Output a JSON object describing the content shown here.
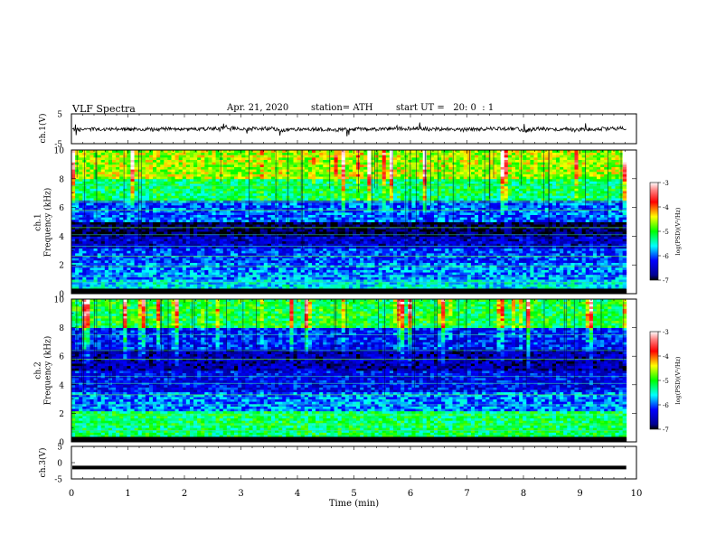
{
  "header": {
    "title": "VLF Spectra",
    "date": "Apr. 21, 2020",
    "station": "station= ATH",
    "start": "start UT =   20: 0  : 1"
  },
  "chart_data": [
    {
      "type": "line",
      "id": "ch1_waveform",
      "ylabel": "ch.1(V)",
      "ylim": [
        -5,
        5
      ],
      "yticks": [
        "5",
        "-5"
      ],
      "xlim": [
        0,
        10
      ],
      "x_data_end": 9.82,
      "y_mean_approx": 0,
      "color": "#000000"
    },
    {
      "type": "heatmap",
      "id": "ch1_spectrogram",
      "ylabel": "ch.1\nFrequency (kHz)",
      "ylim": [
        0,
        10
      ],
      "yticks": [
        "0",
        "2",
        "4",
        "6",
        "8",
        "10"
      ],
      "xlim": [
        0,
        10
      ],
      "x_data_end": 9.82,
      "colorbar": {
        "label": "log(PSD)(V²/Hz)",
        "range": [
          -7,
          -3
        ],
        "ticks": [
          "-3",
          "-4",
          "-5",
          "-6",
          "-7"
        ]
      },
      "band_profile": [
        {
          "f": [
            0,
            0.3
          ],
          "level": -7
        },
        {
          "f": [
            0.3,
            1
          ],
          "level": -5.6
        },
        {
          "f": [
            1,
            2.2
          ],
          "level": -5.9
        },
        {
          "f": [
            2.2,
            3.2
          ],
          "level": -6.1
        },
        {
          "f": [
            3.2,
            4.0
          ],
          "level": -6.5
        },
        {
          "f": [
            4.0,
            5.0
          ],
          "level": -6.9
        },
        {
          "f": [
            5.0,
            6.5
          ],
          "level": -6.0
        },
        {
          "f": [
            6.5,
            8.0
          ],
          "level": -5.2
        },
        {
          "f": [
            8.0,
            10
          ],
          "level": -4.6
        }
      ]
    },
    {
      "type": "heatmap",
      "id": "ch2_spectrogram",
      "ylabel": "ch.2\nFrequency (kHz)",
      "ylim": [
        0,
        10
      ],
      "yticks": [
        "0",
        "2",
        "4",
        "6",
        "8",
        "10"
      ],
      "xlim": [
        0,
        10
      ],
      "x_data_end": 9.82,
      "colorbar": {
        "label": "log(PSD)(V²/Hz)",
        "range": [
          -7,
          -3
        ],
        "ticks": [
          "-3",
          "-4",
          "-5",
          "-6",
          "-7"
        ]
      },
      "band_profile": [
        {
          "f": [
            0,
            0.3
          ],
          "level": -7
        },
        {
          "f": [
            0.3,
            2.2
          ],
          "level": -5.2
        },
        {
          "f": [
            2.2,
            3.5
          ],
          "level": -5.9
        },
        {
          "f": [
            3.5,
            5.0
          ],
          "level": -6.3
        },
        {
          "f": [
            5.0,
            6.5
          ],
          "level": -6.6
        },
        {
          "f": [
            6.5,
            8.0
          ],
          "level": -6.2
        },
        {
          "f": [
            8.0,
            10
          ],
          "level": -5.1
        }
      ]
    },
    {
      "type": "line",
      "id": "ch3_waveform",
      "ylabel": "ch.3(V)",
      "ylim": [
        -5,
        5
      ],
      "yticks": [
        "5",
        "0",
        "-5"
      ],
      "xlim": [
        0,
        10
      ],
      "x_data_end": 9.82,
      "y_mean_approx": -1.5,
      "xlabel": "Time (min)",
      "xticks": [
        "0",
        "1",
        "2",
        "3",
        "4",
        "5",
        "6",
        "7",
        "8",
        "9",
        "10"
      ],
      "color": "#000000"
    }
  ]
}
